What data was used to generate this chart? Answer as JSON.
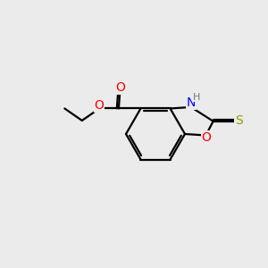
{
  "bg_color": "#ebebeb",
  "bond_color": "#000000",
  "bond_width": 1.6,
  "atom_colors": {
    "O": "#ff0000",
    "N": "#0000ff",
    "S": "#999900",
    "H": "#777777"
  },
  "font_size_atom": 10,
  "font_size_h": 8
}
